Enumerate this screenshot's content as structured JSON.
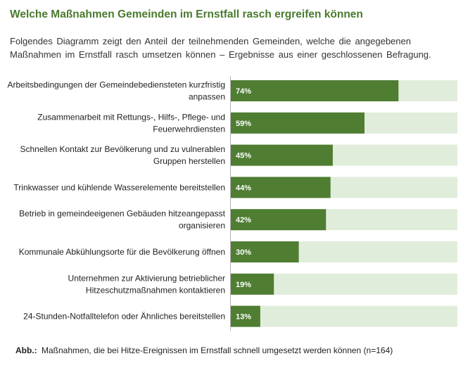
{
  "header": {
    "title": "Welche Maßnahmen Gemeinden im Ernstfall rasch ergreifen können",
    "subtitle": "Folgendes Diagramm zeigt den Anteil der teilnehmenden Gemeinden, welche die angegebenen Maßnahmen im Ernstfall rasch umsetzen können – Ergebnisse aus einer geschlossenen Befragung."
  },
  "caption": {
    "prefix": "Abb.:",
    "text": "Maßnahmen, die bei Hitze-Ereignissen im Ernstfall schnell umgesetzt werden können (n=164)"
  },
  "colors": {
    "bar": "#4f7d32",
    "track": "#e1eddb",
    "axis": "#b3b3b3",
    "value_text": "#ffffff",
    "title": "#4a7a2e"
  },
  "chart_data": {
    "type": "bar",
    "orientation": "horizontal",
    "xlim": [
      0,
      100
    ],
    "unit": "%",
    "categories": [
      [
        "Arbeitsbedingungen der Gemeindebediensteten kurzfristig",
        "anpassen"
      ],
      [
        "Zusammenarbeit mit Rettungs-, Hilfs-, Pflege- und",
        "Feuerwehrdiensten"
      ],
      [
        "Schnellen Kontakt zur Bevölkerung und zu vulnerablen",
        "Gruppen herstellen"
      ],
      [
        "Trinkwasser und kühlende Wasserelemente bereitstellen"
      ],
      [
        "Betrieb in gemeindeeigenen Gebäuden hitzeangepasst",
        "organisieren"
      ],
      [
        "Kommunale Abkühlungsorte für die Bevölkerung öffnen"
      ],
      [
        "Unternehmen zur Aktivierung betrieblicher",
        "Hitzeschutzmaßnahmen kontaktieren"
      ],
      [
        "24-Stunden-Notfalltelefon oder Ähnliches bereitstellen"
      ]
    ],
    "values": [
      74,
      59,
      45,
      44,
      42,
      30,
      19,
      13
    ],
    "value_labels": [
      "74%",
      "59%",
      "45%",
      "44%",
      "42%",
      "30%",
      "19%",
      "13%"
    ]
  }
}
